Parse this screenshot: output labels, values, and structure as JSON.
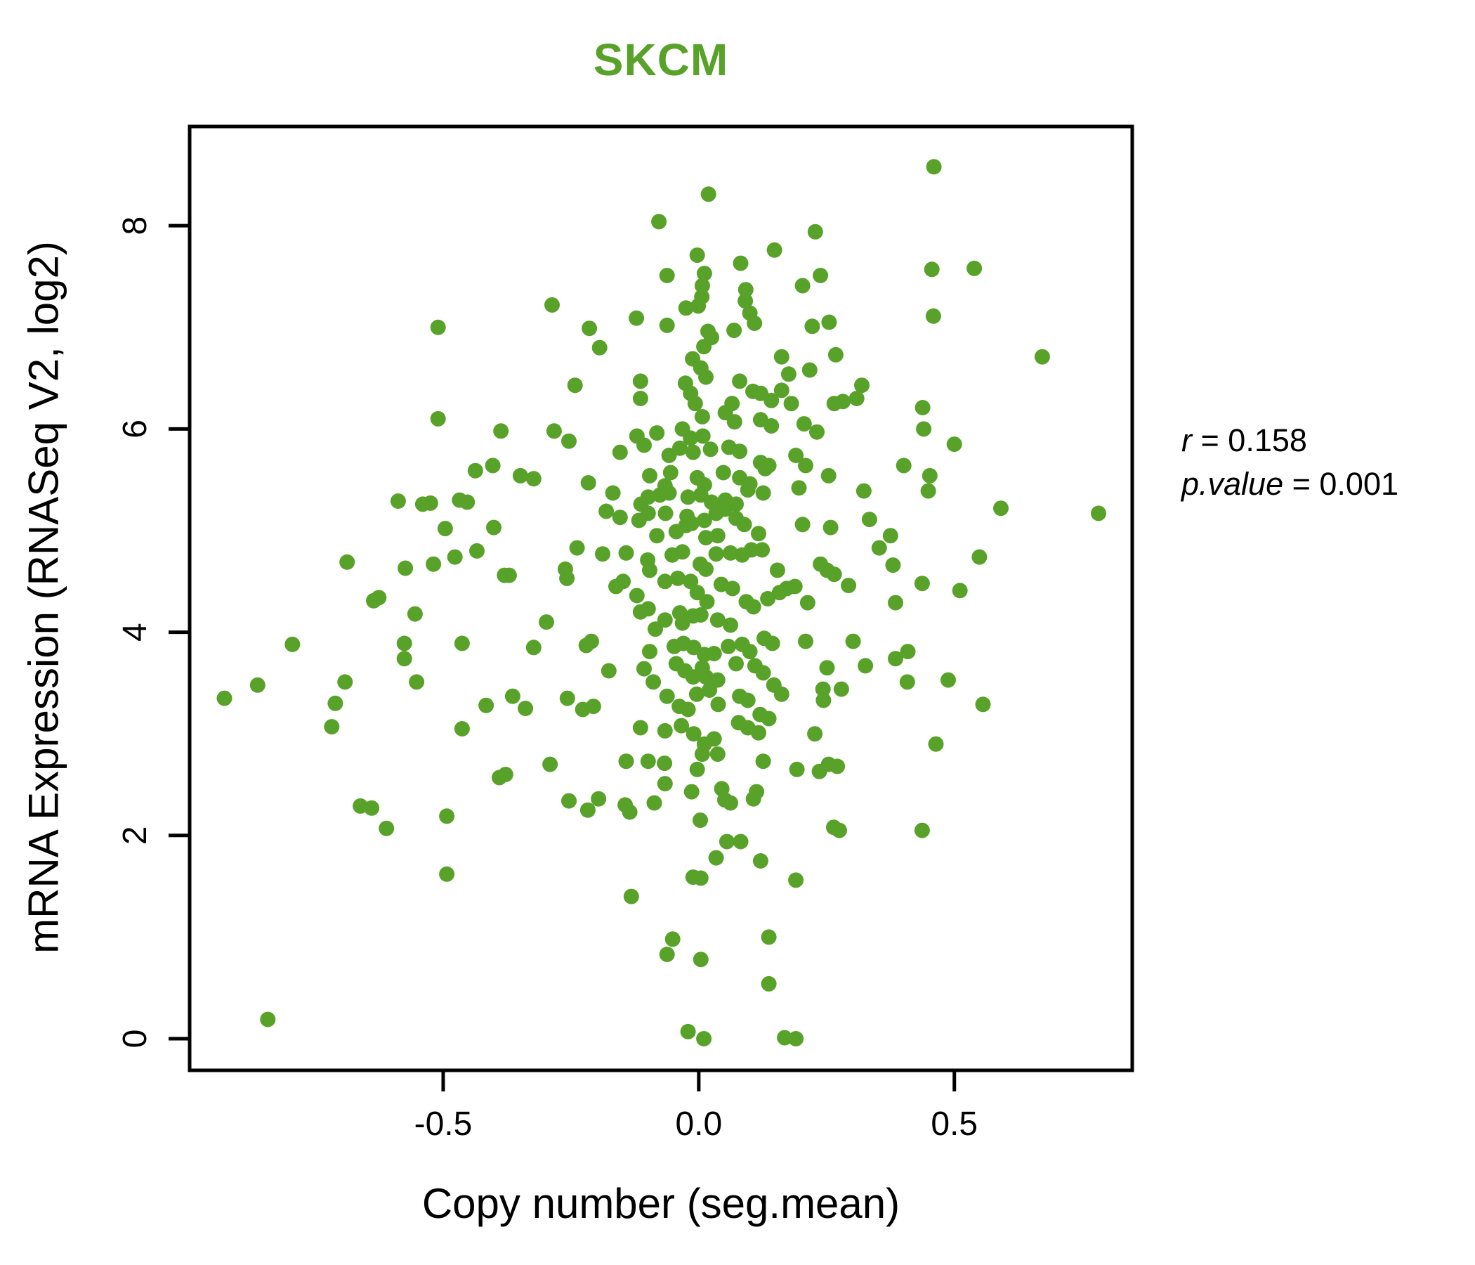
{
  "title": "SKCM",
  "colors": {
    "accent_green": "#58A22A",
    "axis_black": "#000000",
    "background": "#FFFFFF"
  },
  "axes": {
    "x_label": "Copy number (seg.mean)",
    "y_label": "mRNA Expression (RNASeq V2, log2)",
    "x_tick_labels": [
      "-0.5",
      "0.0",
      "0.5"
    ],
    "y_tick_labels": [
      "0",
      "2",
      "4",
      "6",
      "8"
    ]
  },
  "annotation": {
    "sep": " = ",
    "lines": [
      {
        "label": "r",
        "value": "0.158"
      },
      {
        "label": "p.value",
        "value": "0.001"
      }
    ]
  },
  "chart_data": {
    "type": "scatter",
    "title": "SKCM",
    "xlabel": "Copy number (seg.mean)",
    "ylabel": "mRNA Expression (RNASeq V2, log2)",
    "xlim": [
      -0.996,
      0.848
    ],
    "ylim": [
      -0.311,
      8.976
    ],
    "x_ticks": [
      -0.5,
      0.0,
      0.5
    ],
    "y_ticks": [
      0,
      2,
      4,
      6,
      8
    ],
    "grid": false,
    "legend": "none",
    "marker": {
      "shape": "circle",
      "radius_px": 11,
      "color": "#58A22A"
    },
    "annotation": {
      "r": 0.158,
      "p_value": 0.001
    },
    "points": [
      [
        -0.51,
        7.0
      ],
      [
        -0.51,
        6.1
      ],
      [
        -0.387,
        5.98
      ],
      [
        0.019,
        8.31
      ],
      [
        -0.078,
        8.04
      ],
      [
        0.228,
        7.94
      ],
      [
        0.148,
        7.76
      ],
      [
        -0.003,
        7.71
      ],
      [
        0.082,
        7.63
      ],
      [
        0.238,
        7.51
      ],
      [
        -0.062,
        7.51
      ],
      [
        0.011,
        7.53
      ],
      [
        0.203,
        7.41
      ],
      [
        0.092,
        7.37
      ],
      [
        0.091,
        7.26
      ],
      [
        -0.287,
        7.22
      ],
      [
        0.007,
        7.41
      ],
      [
        0.006,
        7.3
      ],
      [
        -0.001,
        7.21
      ],
      [
        -0.025,
        7.19
      ],
      [
        0.1,
        7.14
      ],
      [
        0.109,
        7.04
      ],
      [
        -0.214,
        6.99
      ],
      [
        -0.122,
        7.09
      ],
      [
        -0.062,
        7.02
      ],
      [
        0.222,
        7.01
      ],
      [
        0.069,
        6.97
      ],
      [
        0.018,
        6.96
      ],
      [
        0.025,
        6.9
      ],
      [
        -0.194,
        6.8
      ],
      [
        0.01,
        6.81
      ],
      [
        -0.012,
        6.69
      ],
      [
        0.004,
        6.6
      ],
      [
        0.014,
        6.51
      ],
      [
        0.162,
        6.71
      ],
      [
        0.176,
        6.54
      ],
      [
        0.217,
        6.58
      ],
      [
        -0.242,
        6.43
      ],
      [
        -0.114,
        6.47
      ],
      [
        -0.114,
        6.3
      ],
      [
        -0.026,
        6.45
      ],
      [
        -0.016,
        6.35
      ],
      [
        -0.007,
        6.25
      ],
      [
        0.007,
        6.12
      ],
      [
        0.08,
        6.47
      ],
      [
        0.106,
        6.37
      ],
      [
        0.121,
        6.35
      ],
      [
        0.142,
        6.28
      ],
      [
        0.162,
        6.38
      ],
      [
        0.181,
        6.25
      ],
      [
        0.065,
        6.25
      ],
      [
        0.052,
        6.16
      ],
      [
        0.07,
        6.07
      ],
      [
        0.121,
        6.09
      ],
      [
        0.142,
        6.03
      ],
      [
        0.206,
        6.05
      ],
      [
        0.231,
        5.97
      ],
      [
        -0.032,
        6.0
      ],
      [
        -0.016,
        5.91
      ],
      [
        0.008,
        5.93
      ],
      [
        -0.082,
        5.96
      ],
      [
        -0.121,
        5.93
      ],
      [
        -0.283,
        5.98
      ],
      [
        -0.254,
        5.88
      ],
      [
        0.46,
        8.58
      ],
      [
        0.456,
        7.57
      ],
      [
        0.539,
        7.58
      ],
      [
        0.459,
        7.11
      ],
      [
        0.255,
        7.05
      ],
      [
        0.672,
        6.71
      ],
      [
        0.268,
        6.73
      ],
      [
        0.319,
        6.43
      ],
      [
        0.309,
        6.3
      ],
      [
        0.282,
        6.27
      ],
      [
        0.265,
        6.25
      ],
      [
        0.438,
        6.21
      ],
      [
        0.44,
        6.0
      ],
      [
        -0.437,
        5.59
      ],
      [
        -0.403,
        5.64
      ],
      [
        -0.588,
        5.29
      ],
      [
        -0.54,
        5.26
      ],
      [
        -0.525,
        5.27
      ],
      [
        -0.468,
        5.3
      ],
      [
        -0.453,
        5.28
      ],
      [
        -0.496,
        5.02
      ],
      [
        -0.401,
        5.03
      ],
      [
        -0.688,
        4.69
      ],
      [
        -0.574,
        4.63
      ],
      [
        -0.519,
        4.67
      ],
      [
        -0.477,
        4.74
      ],
      [
        -0.434,
        4.8
      ],
      [
        -0.38,
        4.56
      ],
      [
        -0.636,
        4.31
      ],
      [
        -0.626,
        4.34
      ],
      [
        -0.555,
        4.18
      ],
      [
        -0.795,
        3.88
      ],
      [
        -0.576,
        3.89
      ],
      [
        -0.576,
        3.74
      ],
      [
        -0.463,
        3.89
      ],
      [
        -0.552,
        3.51
      ],
      [
        -0.863,
        3.48
      ],
      [
        -0.928,
        3.35
      ],
      [
        -0.692,
        3.51
      ],
      [
        -0.711,
        3.3
      ],
      [
        -0.416,
        3.28
      ],
      [
        -0.718,
        3.07
      ],
      [
        -0.463,
        3.05
      ],
      [
        -0.154,
        5.77
      ],
      [
        -0.107,
        5.84
      ],
      [
        -0.058,
        5.74
      ],
      [
        -0.037,
        5.81
      ],
      [
        -0.011,
        5.77
      ],
      [
        0.023,
        5.8
      ],
      [
        0.059,
        5.82
      ],
      [
        0.08,
        5.78
      ],
      [
        0.121,
        5.67
      ],
      [
        0.137,
        5.64
      ],
      [
        0.19,
        5.74
      ],
      [
        0.209,
        5.64
      ],
      [
        -0.349,
        5.54
      ],
      [
        -0.323,
        5.51
      ],
      [
        -0.216,
        5.47
      ],
      [
        -0.096,
        5.54
      ],
      [
        -0.066,
        5.44
      ],
      [
        -0.055,
        5.57
      ],
      [
        -0.003,
        5.52
      ],
      [
        0.011,
        5.45
      ],
      [
        0.048,
        5.57
      ],
      [
        0.08,
        5.52
      ],
      [
        0.1,
        5.46
      ],
      [
        0.13,
        5.61
      ],
      [
        -0.168,
        5.37
      ],
      [
        -0.113,
        5.26
      ],
      [
        -0.099,
        5.33
      ],
      [
        -0.076,
        5.35
      ],
      [
        -0.058,
        5.37
      ],
      [
        -0.021,
        5.33
      ],
      [
        0.004,
        5.35
      ],
      [
        0.025,
        5.28
      ],
      [
        0.052,
        5.3
      ],
      [
        0.073,
        5.26
      ],
      [
        0.096,
        5.4
      ],
      [
        0.126,
        5.37
      ],
      [
        0.196,
        5.42
      ],
      [
        -0.181,
        5.19
      ],
      [
        -0.154,
        5.13
      ],
      [
        -0.117,
        5.1
      ],
      [
        -0.099,
        5.17
      ],
      [
        -0.065,
        5.17
      ],
      [
        -0.023,
        5.14
      ],
      [
        -0.014,
        5.07
      ],
      [
        0.011,
        5.1
      ],
      [
        0.034,
        5.17
      ],
      [
        0.051,
        5.21
      ],
      [
        0.073,
        5.12
      ],
      [
        0.089,
        5.06
      ],
      [
        0.203,
        5.06
      ],
      [
        -0.082,
        4.95
      ],
      [
        -0.044,
        4.99
      ],
      [
        -0.025,
        5.05
      ],
      [
        0.014,
        4.93
      ],
      [
        0.037,
        4.95
      ],
      [
        0.117,
        4.97
      ],
      [
        -0.238,
        4.83
      ],
      [
        -0.188,
        4.77
      ],
      [
        -0.142,
        4.78
      ],
      [
        -0.1,
        4.71
      ],
      [
        -0.096,
        4.61
      ],
      [
        -0.052,
        4.76
      ],
      [
        -0.032,
        4.79
      ],
      [
        0.003,
        4.67
      ],
      [
        0.014,
        4.62
      ],
      [
        0.034,
        4.77
      ],
      [
        0.062,
        4.78
      ],
      [
        0.085,
        4.76
      ],
      [
        0.103,
        4.81
      ],
      [
        0.124,
        4.81
      ],
      [
        0.154,
        4.61
      ],
      [
        0.172,
        4.43
      ],
      [
        0.188,
        4.45
      ],
      [
        0.213,
        4.29
      ],
      [
        0.238,
        4.67
      ],
      [
        -0.371,
        4.56
      ],
      [
        -0.261,
        4.62
      ],
      [
        -0.258,
        4.53
      ],
      [
        -0.162,
        4.45
      ],
      [
        -0.148,
        4.5
      ],
      [
        -0.121,
        4.36
      ],
      [
        -0.066,
        4.5
      ],
      [
        -0.041,
        4.53
      ],
      [
        -0.016,
        4.5
      ],
      [
        -0.003,
        4.39
      ],
      [
        0.016,
        4.3
      ],
      [
        0.044,
        4.47
      ],
      [
        0.066,
        4.43
      ],
      [
        0.093,
        4.3
      ],
      [
        0.107,
        4.25
      ],
      [
        0.135,
        4.33
      ],
      [
        0.158,
        4.39
      ],
      [
        -0.114,
        4.2
      ],
      [
        -0.099,
        4.23
      ],
      [
        -0.085,
        4.03
      ],
      [
        -0.066,
        4.12
      ],
      [
        -0.037,
        4.19
      ],
      [
        -0.032,
        4.09
      ],
      [
        -0.011,
        4.16
      ],
      [
        0.004,
        4.17
      ],
      [
        0.037,
        4.12
      ],
      [
        0.062,
        4.07
      ],
      [
        0.209,
        3.91
      ],
      [
        -0.298,
        4.1
      ],
      [
        -0.323,
        3.85
      ],
      [
        -0.22,
        3.87
      ],
      [
        -0.21,
        3.91
      ],
      [
        -0.096,
        3.81
      ],
      [
        -0.048,
        3.86
      ],
      [
        -0.03,
        3.89
      ],
      [
        -0.01,
        3.85
      ],
      [
        0.011,
        3.78
      ],
      [
        0.03,
        3.79
      ],
      [
        0.058,
        3.86
      ],
      [
        0.085,
        3.88
      ],
      [
        0.1,
        3.81
      ],
      [
        0.128,
        3.94
      ],
      [
        0.144,
        3.89
      ],
      [
        -0.176,
        3.62
      ],
      [
        -0.107,
        3.64
      ],
      [
        -0.089,
        3.51
      ],
      [
        -0.044,
        3.69
      ],
      [
        -0.027,
        3.62
      ],
      [
        -0.011,
        3.56
      ],
      [
        0.007,
        3.65
      ],
      [
        0.014,
        3.56
      ],
      [
        0.037,
        3.53
      ],
      [
        0.073,
        3.69
      ],
      [
        0.11,
        3.67
      ],
      [
        0.126,
        3.6
      ],
      [
        0.147,
        3.48
      ],
      [
        0.162,
        3.39
      ],
      [
        -0.364,
        3.37
      ],
      [
        -0.339,
        3.25
      ],
      [
        -0.257,
        3.35
      ],
      [
        -0.227,
        3.24
      ],
      [
        -0.206,
        3.27
      ],
      [
        -0.062,
        3.37
      ],
      [
        -0.038,
        3.27
      ],
      [
        -0.021,
        3.24
      ],
      [
        -0.004,
        3.39
      ],
      [
        0.021,
        3.43
      ],
      [
        0.038,
        3.29
      ],
      [
        0.08,
        3.37
      ],
      [
        0.096,
        3.33
      ],
      [
        0.12,
        3.19
      ],
      [
        0.137,
        3.15
      ],
      [
        -0.114,
        3.06
      ],
      [
        -0.066,
        3.03
      ],
      [
        -0.034,
        3.08
      ],
      [
        -0.01,
        3.0
      ],
      [
        0.011,
        2.9
      ],
      [
        0.03,
        2.95
      ],
      [
        0.078,
        3.11
      ],
      [
        0.096,
        3.06
      ],
      [
        0.117,
        3.01
      ],
      [
        0.227,
        3.0
      ],
      [
        0.007,
        2.8
      ],
      [
        0.037,
        2.8
      ],
      [
        0.5,
        5.85
      ],
      [
        0.254,
        5.54
      ],
      [
        0.401,
        5.64
      ],
      [
        0.452,
        5.54
      ],
      [
        0.323,
        5.39
      ],
      [
        0.449,
        5.39
      ],
      [
        0.591,
        5.22
      ],
      [
        0.782,
        5.17
      ],
      [
        0.258,
        5.03
      ],
      [
        0.334,
        5.11
      ],
      [
        0.375,
        4.95
      ],
      [
        0.353,
        4.83
      ],
      [
        0.38,
        4.66
      ],
      [
        0.549,
        4.74
      ],
      [
        0.251,
        4.61
      ],
      [
        0.265,
        4.57
      ],
      [
        0.293,
        4.46
      ],
      [
        0.437,
        4.48
      ],
      [
        0.511,
        4.41
      ],
      [
        0.385,
        4.29
      ],
      [
        0.302,
        3.91
      ],
      [
        0.409,
        3.81
      ],
      [
        0.385,
        3.74
      ],
      [
        0.326,
        3.67
      ],
      [
        0.251,
        3.65
      ],
      [
        0.243,
        3.44
      ],
      [
        0.279,
        3.44
      ],
      [
        0.244,
        3.33
      ],
      [
        0.408,
        3.51
      ],
      [
        0.488,
        3.53
      ],
      [
        0.556,
        3.29
      ],
      [
        0.464,
        2.9
      ],
      [
        -0.39,
        2.57
      ],
      [
        -0.662,
        2.29
      ],
      [
        -0.64,
        2.27
      ],
      [
        -0.611,
        2.07
      ],
      [
        -0.493,
        2.19
      ],
      [
        -0.493,
        1.62
      ],
      [
        -0.843,
        0.19
      ],
      [
        -0.291,
        2.7
      ],
      [
        -0.378,
        2.6
      ],
      [
        -0.142,
        2.73
      ],
      [
        -0.099,
        2.73
      ],
      [
        -0.067,
        2.71
      ],
      [
        -0.003,
        2.65
      ],
      [
        0.126,
        2.73
      ],
      [
        0.192,
        2.65
      ],
      [
        0.236,
        2.63
      ],
      [
        -0.066,
        2.51
      ],
      [
        -0.014,
        2.43
      ],
      [
        0.045,
        2.46
      ],
      [
        0.051,
        2.35
      ],
      [
        0.062,
        2.32
      ],
      [
        0.113,
        2.43
      ],
      [
        0.107,
        2.36
      ],
      [
        -0.254,
        2.34
      ],
      [
        -0.217,
        2.25
      ],
      [
        -0.196,
        2.36
      ],
      [
        -0.144,
        2.3
      ],
      [
        -0.135,
        2.23
      ],
      [
        -0.087,
        2.32
      ],
      [
        0.003,
        2.15
      ],
      [
        0.055,
        1.94
      ],
      [
        0.082,
        1.94
      ],
      [
        0.034,
        1.78
      ],
      [
        0.121,
        1.75
      ],
      [
        -0.011,
        1.59
      ],
      [
        0.004,
        1.58
      ],
      [
        0.19,
        1.56
      ],
      [
        -0.132,
        1.4
      ],
      [
        -0.051,
        0.98
      ],
      [
        -0.062,
        0.83
      ],
      [
        0.004,
        0.78
      ],
      [
        0.137,
        1.0
      ],
      [
        0.137,
        0.54
      ],
      [
        -0.021,
        0.07
      ],
      [
        0.01,
        0.0
      ],
      [
        0.168,
        0.01
      ],
      [
        0.19,
        0.0
      ],
      [
        0.254,
        2.7
      ],
      [
        0.271,
        2.68
      ],
      [
        0.275,
        2.05
      ],
      [
        0.264,
        2.08
      ],
      [
        0.437,
        2.05
      ]
    ]
  }
}
